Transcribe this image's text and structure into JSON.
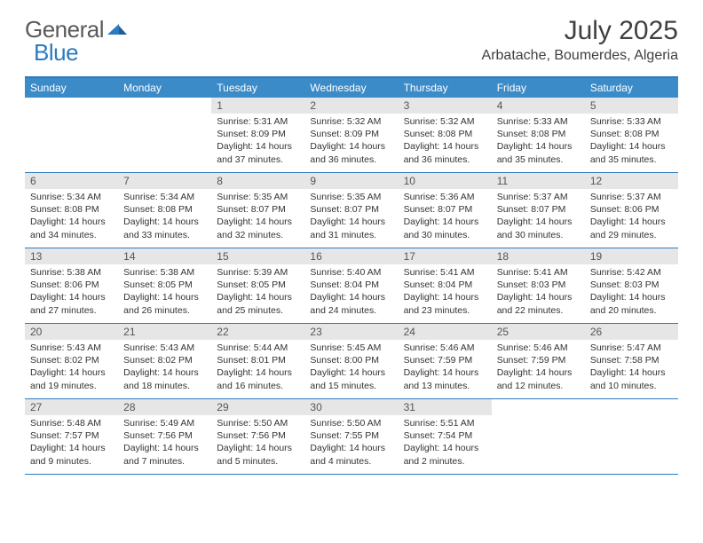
{
  "logo": {
    "general": "General",
    "blue": "Blue"
  },
  "title": "July 2025",
  "subtitle": "Arbatache, Boumerdes, Algeria",
  "colors": {
    "header_bar": "#3b8bc9",
    "border": "#2b7bbf",
    "daynum_bg": "#e6e6e6",
    "text_dark": "#404040",
    "text_body": "#333333",
    "logo_gray": "#5a5a5a",
    "logo_blue": "#2b7bbf"
  },
  "weekdays": [
    "Sunday",
    "Monday",
    "Tuesday",
    "Wednesday",
    "Thursday",
    "Friday",
    "Saturday"
  ],
  "weeks": [
    [
      {
        "empty": true
      },
      {
        "empty": true
      },
      {
        "num": "1",
        "sunrise": "Sunrise: 5:31 AM",
        "sunset": "Sunset: 8:09 PM",
        "daylight": "Daylight: 14 hours and 37 minutes."
      },
      {
        "num": "2",
        "sunrise": "Sunrise: 5:32 AM",
        "sunset": "Sunset: 8:09 PM",
        "daylight": "Daylight: 14 hours and 36 minutes."
      },
      {
        "num": "3",
        "sunrise": "Sunrise: 5:32 AM",
        "sunset": "Sunset: 8:08 PM",
        "daylight": "Daylight: 14 hours and 36 minutes."
      },
      {
        "num": "4",
        "sunrise": "Sunrise: 5:33 AM",
        "sunset": "Sunset: 8:08 PM",
        "daylight": "Daylight: 14 hours and 35 minutes."
      },
      {
        "num": "5",
        "sunrise": "Sunrise: 5:33 AM",
        "sunset": "Sunset: 8:08 PM",
        "daylight": "Daylight: 14 hours and 35 minutes."
      }
    ],
    [
      {
        "num": "6",
        "sunrise": "Sunrise: 5:34 AM",
        "sunset": "Sunset: 8:08 PM",
        "daylight": "Daylight: 14 hours and 34 minutes."
      },
      {
        "num": "7",
        "sunrise": "Sunrise: 5:34 AM",
        "sunset": "Sunset: 8:08 PM",
        "daylight": "Daylight: 14 hours and 33 minutes."
      },
      {
        "num": "8",
        "sunrise": "Sunrise: 5:35 AM",
        "sunset": "Sunset: 8:07 PM",
        "daylight": "Daylight: 14 hours and 32 minutes."
      },
      {
        "num": "9",
        "sunrise": "Sunrise: 5:35 AM",
        "sunset": "Sunset: 8:07 PM",
        "daylight": "Daylight: 14 hours and 31 minutes."
      },
      {
        "num": "10",
        "sunrise": "Sunrise: 5:36 AM",
        "sunset": "Sunset: 8:07 PM",
        "daylight": "Daylight: 14 hours and 30 minutes."
      },
      {
        "num": "11",
        "sunrise": "Sunrise: 5:37 AM",
        "sunset": "Sunset: 8:07 PM",
        "daylight": "Daylight: 14 hours and 30 minutes."
      },
      {
        "num": "12",
        "sunrise": "Sunrise: 5:37 AM",
        "sunset": "Sunset: 8:06 PM",
        "daylight": "Daylight: 14 hours and 29 minutes."
      }
    ],
    [
      {
        "num": "13",
        "sunrise": "Sunrise: 5:38 AM",
        "sunset": "Sunset: 8:06 PM",
        "daylight": "Daylight: 14 hours and 27 minutes."
      },
      {
        "num": "14",
        "sunrise": "Sunrise: 5:38 AM",
        "sunset": "Sunset: 8:05 PM",
        "daylight": "Daylight: 14 hours and 26 minutes."
      },
      {
        "num": "15",
        "sunrise": "Sunrise: 5:39 AM",
        "sunset": "Sunset: 8:05 PM",
        "daylight": "Daylight: 14 hours and 25 minutes."
      },
      {
        "num": "16",
        "sunrise": "Sunrise: 5:40 AM",
        "sunset": "Sunset: 8:04 PM",
        "daylight": "Daylight: 14 hours and 24 minutes."
      },
      {
        "num": "17",
        "sunrise": "Sunrise: 5:41 AM",
        "sunset": "Sunset: 8:04 PM",
        "daylight": "Daylight: 14 hours and 23 minutes."
      },
      {
        "num": "18",
        "sunrise": "Sunrise: 5:41 AM",
        "sunset": "Sunset: 8:03 PM",
        "daylight": "Daylight: 14 hours and 22 minutes."
      },
      {
        "num": "19",
        "sunrise": "Sunrise: 5:42 AM",
        "sunset": "Sunset: 8:03 PM",
        "daylight": "Daylight: 14 hours and 20 minutes."
      }
    ],
    [
      {
        "num": "20",
        "sunrise": "Sunrise: 5:43 AM",
        "sunset": "Sunset: 8:02 PM",
        "daylight": "Daylight: 14 hours and 19 minutes."
      },
      {
        "num": "21",
        "sunrise": "Sunrise: 5:43 AM",
        "sunset": "Sunset: 8:02 PM",
        "daylight": "Daylight: 14 hours and 18 minutes."
      },
      {
        "num": "22",
        "sunrise": "Sunrise: 5:44 AM",
        "sunset": "Sunset: 8:01 PM",
        "daylight": "Daylight: 14 hours and 16 minutes."
      },
      {
        "num": "23",
        "sunrise": "Sunrise: 5:45 AM",
        "sunset": "Sunset: 8:00 PM",
        "daylight": "Daylight: 14 hours and 15 minutes."
      },
      {
        "num": "24",
        "sunrise": "Sunrise: 5:46 AM",
        "sunset": "Sunset: 7:59 PM",
        "daylight": "Daylight: 14 hours and 13 minutes."
      },
      {
        "num": "25",
        "sunrise": "Sunrise: 5:46 AM",
        "sunset": "Sunset: 7:59 PM",
        "daylight": "Daylight: 14 hours and 12 minutes."
      },
      {
        "num": "26",
        "sunrise": "Sunrise: 5:47 AM",
        "sunset": "Sunset: 7:58 PM",
        "daylight": "Daylight: 14 hours and 10 minutes."
      }
    ],
    [
      {
        "num": "27",
        "sunrise": "Sunrise: 5:48 AM",
        "sunset": "Sunset: 7:57 PM",
        "daylight": "Daylight: 14 hours and 9 minutes."
      },
      {
        "num": "28",
        "sunrise": "Sunrise: 5:49 AM",
        "sunset": "Sunset: 7:56 PM",
        "daylight": "Daylight: 14 hours and 7 minutes."
      },
      {
        "num": "29",
        "sunrise": "Sunrise: 5:50 AM",
        "sunset": "Sunset: 7:56 PM",
        "daylight": "Daylight: 14 hours and 5 minutes."
      },
      {
        "num": "30",
        "sunrise": "Sunrise: 5:50 AM",
        "sunset": "Sunset: 7:55 PM",
        "daylight": "Daylight: 14 hours and 4 minutes."
      },
      {
        "num": "31",
        "sunrise": "Sunrise: 5:51 AM",
        "sunset": "Sunset: 7:54 PM",
        "daylight": "Daylight: 14 hours and 2 minutes."
      },
      {
        "empty": true
      },
      {
        "empty": true
      }
    ]
  ]
}
